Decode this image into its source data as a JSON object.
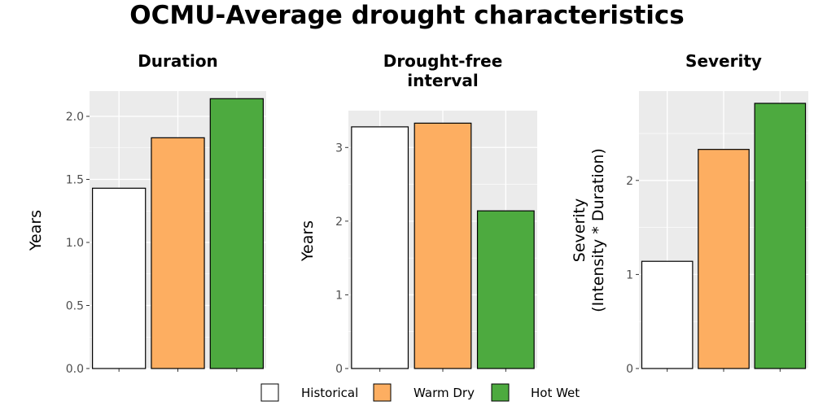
{
  "title": "OCMU-Average drought characteristics",
  "legend": {
    "position": "bottom",
    "items": [
      {
        "label": "Historical",
        "color": "#ffffff"
      },
      {
        "label": "Warm Dry",
        "color": "#fdae61"
      },
      {
        "label": "Hot Wet",
        "color": "#4daa3f"
      }
    ]
  },
  "chart_data": [
    {
      "type": "bar",
      "title": "Duration",
      "ylabel": "Years",
      "categories": [
        "Historical",
        "Warm Dry",
        "Hot Wet"
      ],
      "values": [
        1.43,
        1.83,
        2.14
      ],
      "ylim": [
        0,
        2.2
      ],
      "yticks": [
        0.0,
        0.5,
        1.0,
        1.5,
        2.0
      ],
      "ytick_labels": [
        "0.0",
        "0.5",
        "1.0",
        "1.5",
        "2.0"
      ],
      "grid": true
    },
    {
      "type": "bar",
      "title": "Drought-free interval",
      "title_lines": [
        "Drought-free",
        "interval"
      ],
      "ylabel": "Years",
      "categories": [
        "Historical",
        "Warm Dry",
        "Hot Wet"
      ],
      "values": [
        3.28,
        3.33,
        2.14
      ],
      "ylim": [
        0,
        3.5
      ],
      "yticks": [
        0,
        1,
        2,
        3
      ],
      "ytick_labels": [
        "0",
        "1",
        "2",
        "3"
      ],
      "grid": true
    },
    {
      "type": "bar",
      "title": "Severity",
      "ylabel": "Severity (Intensity * Duration)",
      "ylabel_lines": [
        "Severity",
        "(Intensity * Duration)"
      ],
      "categories": [
        "Historical",
        "Warm Dry",
        "Hot Wet"
      ],
      "values": [
        1.14,
        2.33,
        2.82
      ],
      "ylim": [
        0,
        2.95
      ],
      "yticks": [
        0,
        1,
        2
      ],
      "ytick_labels": [
        "0",
        "1",
        "2"
      ],
      "grid": true
    }
  ]
}
